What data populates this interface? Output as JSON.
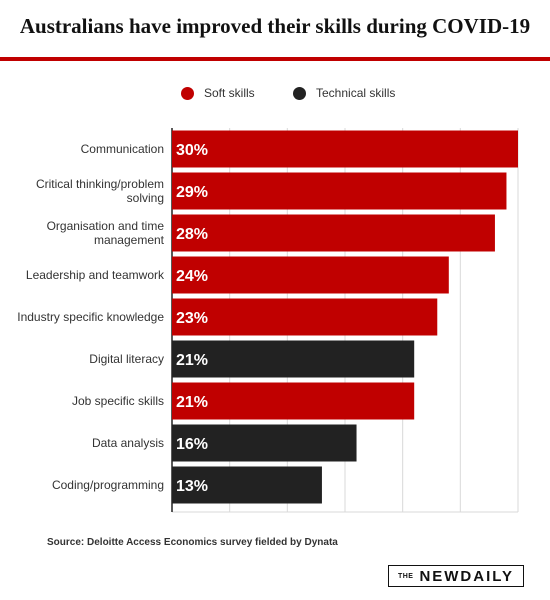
{
  "title": "Australians have improved their skills during COVID-19",
  "legend": {
    "soft": {
      "label": "Soft skills",
      "color": "#c00000"
    },
    "technical": {
      "label": "Technical skills",
      "color": "#222222"
    }
  },
  "chart_data": {
    "type": "bar",
    "orientation": "horizontal",
    "title": "Australians have improved their skills during COVID-19",
    "categories": [
      [
        "Communication"
      ],
      [
        "Critical thinking/problem",
        "solving"
      ],
      [
        "Organisation and time",
        "management"
      ],
      [
        "Leadership and teamwork"
      ],
      [
        "Industry specific knowledge"
      ],
      [
        "Digital literacy"
      ],
      [
        "Job specific skills"
      ],
      [
        "Data analysis"
      ],
      [
        "Coding/programming"
      ]
    ],
    "values": [
      30,
      29,
      28,
      24,
      23,
      21,
      21,
      16,
      13
    ],
    "value_labels": [
      "30%",
      "29%",
      "28%",
      "24%",
      "23%",
      "21%",
      "21%",
      "16%",
      "13%"
    ],
    "groups": [
      "soft",
      "soft",
      "soft",
      "soft",
      "soft",
      "technical",
      "soft",
      "technical",
      "technical"
    ],
    "xlim": [
      0,
      30
    ],
    "grid": true,
    "legend_position": "top"
  },
  "source": "Source: Deloitte Access Economics survey fielded by Dynata",
  "logo": {
    "the": "THE",
    "word": "NEWDAILY"
  }
}
